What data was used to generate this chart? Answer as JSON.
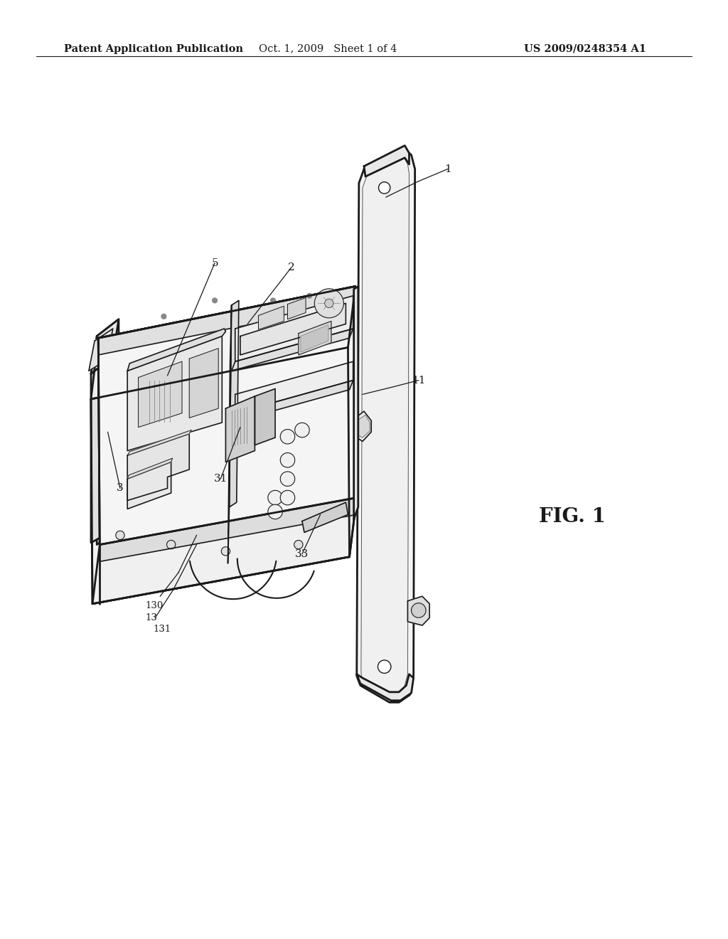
{
  "background_color": "#ffffff",
  "header_left": "Patent Application Publication",
  "header_center": "Oct. 1, 2009   Sheet 1 of 4",
  "header_right": "US 2009/0248354 A1",
  "fig_label": "FIG. 1",
  "line_color": "#1a1a1a",
  "label_color": "#1a1a1a",
  "header_fontsize": 10.5,
  "fig_label_fontsize": 20
}
